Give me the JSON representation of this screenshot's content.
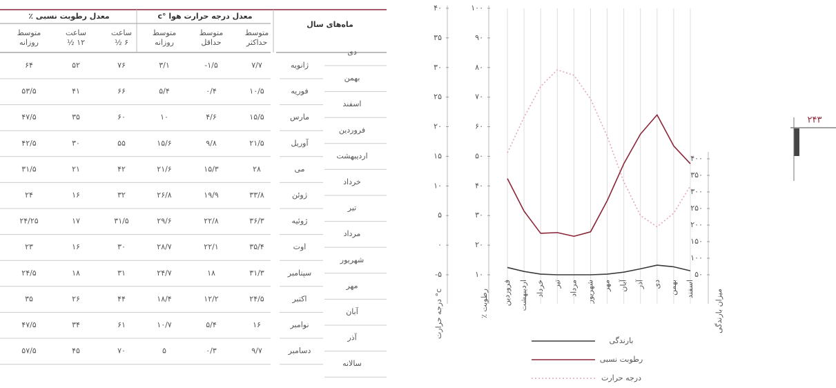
{
  "page_number": "۲۴۳",
  "table": {
    "group_headers": [
      "معدل درجه حرارت هوا °c",
      "معدل رطوبت نسبی ٪"
    ],
    "month_header": "ماه‌های سال",
    "sub_headers": [
      [
        "متوسط",
        "حداکثر"
      ],
      [
        "متوسط",
        "حداقل"
      ],
      [
        "متوسط",
        "روزانه"
      ],
      [
        "ساعت",
        "۶ ½"
      ],
      [
        "ساعت",
        "۱۲ ½"
      ],
      [
        "متوسط",
        "روزانه"
      ]
    ],
    "persian_months": [
      "دی",
      "بهمن",
      "اسفند",
      "فروردین",
      "اردیبهشت",
      "خرداد",
      "تیر",
      "مرداد",
      "شهریور",
      "مهر",
      "آبان",
      "آذر",
      "سالانه"
    ],
    "rows": [
      [
        "ژانویه",
        "۷/۷",
        "-۱/۵",
        "۳/۱",
        "۷۶",
        "۵۲",
        "۶۴"
      ],
      [
        "فوریه",
        "۱۰/۵",
        "۰/۴",
        "۵/۴",
        "۶۶",
        "۴۱",
        "۵۳/۵"
      ],
      [
        "مارس",
        "۱۵/۵",
        "۴/۶",
        "۱۰",
        "۶۰",
        "۳۵",
        "۴۷/۵"
      ],
      [
        "آوریل",
        "۲۱/۵",
        "۹/۸",
        "۱۵/۶",
        "۵۵",
        "۳۰",
        "۴۲/۵"
      ],
      [
        "می",
        "۲۸",
        "۱۵/۳",
        "۲۱/۶",
        "۴۲",
        "۲۱",
        "۳۱/۵"
      ],
      [
        "ژوئن",
        "۳۳/۸",
        "۱۹/۹",
        "۲۶/۸",
        "۳۲",
        "۱۶",
        "۲۴"
      ],
      [
        "ژوئیه",
        "۳۶/۳",
        "۲۲/۸",
        "۲۹/۶",
        "۳۱/۵",
        "۱۷",
        "۲۴/۲۵"
      ],
      [
        "اوت",
        "۳۵/۴",
        "۲۲/۱",
        "۲۸/۷",
        "۳۰",
        "۱۶",
        "۲۳"
      ],
      [
        "سپتامبر",
        "۳۱/۳",
        "۱۸",
        "۲۴/۷",
        "۳۱",
        "۱۸",
        "۲۴/۵"
      ],
      [
        "اکتبر",
        "۲۴/۵",
        "۱۲/۲",
        "۱۸/۴",
        "۴۴",
        "۲۶",
        "۳۵"
      ],
      [
        "نوامبر",
        "۱۶",
        "۵/۴",
        "۱۰/۷",
        "۶۱",
        "۳۴",
        "۴۷/۵"
      ],
      [
        "دسامبر",
        "۹/۷",
        "۰/۳",
        "۵",
        "۷۰",
        "۴۵",
        "۵۷/۵"
      ]
    ]
  },
  "chart": {
    "x_labels": [
      "فروردین",
      "اردیبهشت",
      "خرداد",
      "تیر",
      "مرداد",
      "شهریور",
      "مهر",
      "آبان",
      "آذر",
      "دی",
      "بهمن",
      "اسفند"
    ],
    "temp_axis": {
      "title": "درجه حرارت °c",
      "lim": [
        -5,
        40
      ],
      "ticks": [
        {
          "value": 40,
          "label": "۴۰"
        },
        {
          "value": 35,
          "label": "۳۵"
        },
        {
          "value": 30,
          "label": "۳۰"
        },
        {
          "value": 25,
          "label": "۲۵"
        },
        {
          "value": 20,
          "label": "۲۰"
        },
        {
          "value": 15,
          "label": "۱۵"
        },
        {
          "value": 10,
          "label": "۱۰"
        },
        {
          "value": 5,
          "label": "۵"
        },
        {
          "value": 0,
          "label": "۰"
        },
        {
          "value": -5,
          "label": "-۵"
        }
      ]
    },
    "humidity_axis": {
      "title": "٪ رطوبت",
      "lim": [
        10,
        100
      ],
      "ticks": [
        {
          "value": 100,
          "label": "۱۰۰"
        },
        {
          "value": 90,
          "label": "۹۰"
        },
        {
          "value": 80,
          "label": "۸۰"
        },
        {
          "value": 70,
          "label": "۷۰"
        },
        {
          "value": 60,
          "label": "۶۰"
        },
        {
          "value": 50,
          "label": "۵۰"
        },
        {
          "value": 40,
          "label": "۴۰"
        },
        {
          "value": 30,
          "label": "۳۰"
        },
        {
          "value": 20,
          "label": "۲۰"
        },
        {
          "value": 10,
          "label": "۱۰"
        }
      ]
    },
    "rain_axis": {
      "title": "میزان بارندگی",
      "lim": [
        0,
        400
      ],
      "ticks": [
        {
          "value": 400,
          "label": "۴۰۰"
        },
        {
          "value": 350,
          "label": "۳۵۰"
        },
        {
          "value": 300,
          "label": "۳۰۰"
        },
        {
          "value": 250,
          "label": "۲۵۰"
        },
        {
          "value": 200,
          "label": "۲۰۰"
        },
        {
          "value": 150,
          "label": "۱۵۰"
        },
        {
          "value": 100,
          "label": "۱۰۰"
        },
        {
          "value": 50,
          "label": "۵۰"
        }
      ]
    },
    "series": [
      {
        "name": "بارندگی",
        "color": "#3a3a3a",
        "axis": "rain_axis",
        "values": [
          72,
          60,
          52,
          50,
          50,
          50,
          52,
          58,
          68,
          79,
          74,
          62
        ]
      },
      {
        "name": "رطوبت نسبی",
        "color": "#8a2538",
        "axis": "humidity_axis",
        "values": [
          42.5,
          31.5,
          24,
          24.25,
          23,
          24.5,
          35,
          47.5,
          57.5,
          64,
          53.5,
          47.5
        ]
      },
      {
        "name": "درجه حرارت",
        "color": "#e3a7b5",
        "axis": "temp_axis",
        "dashed": true,
        "values": [
          15.6,
          21.6,
          26.8,
          29.6,
          28.7,
          24.7,
          18.4,
          10.7,
          5,
          3.1,
          5.4,
          10
        ]
      }
    ]
  }
}
